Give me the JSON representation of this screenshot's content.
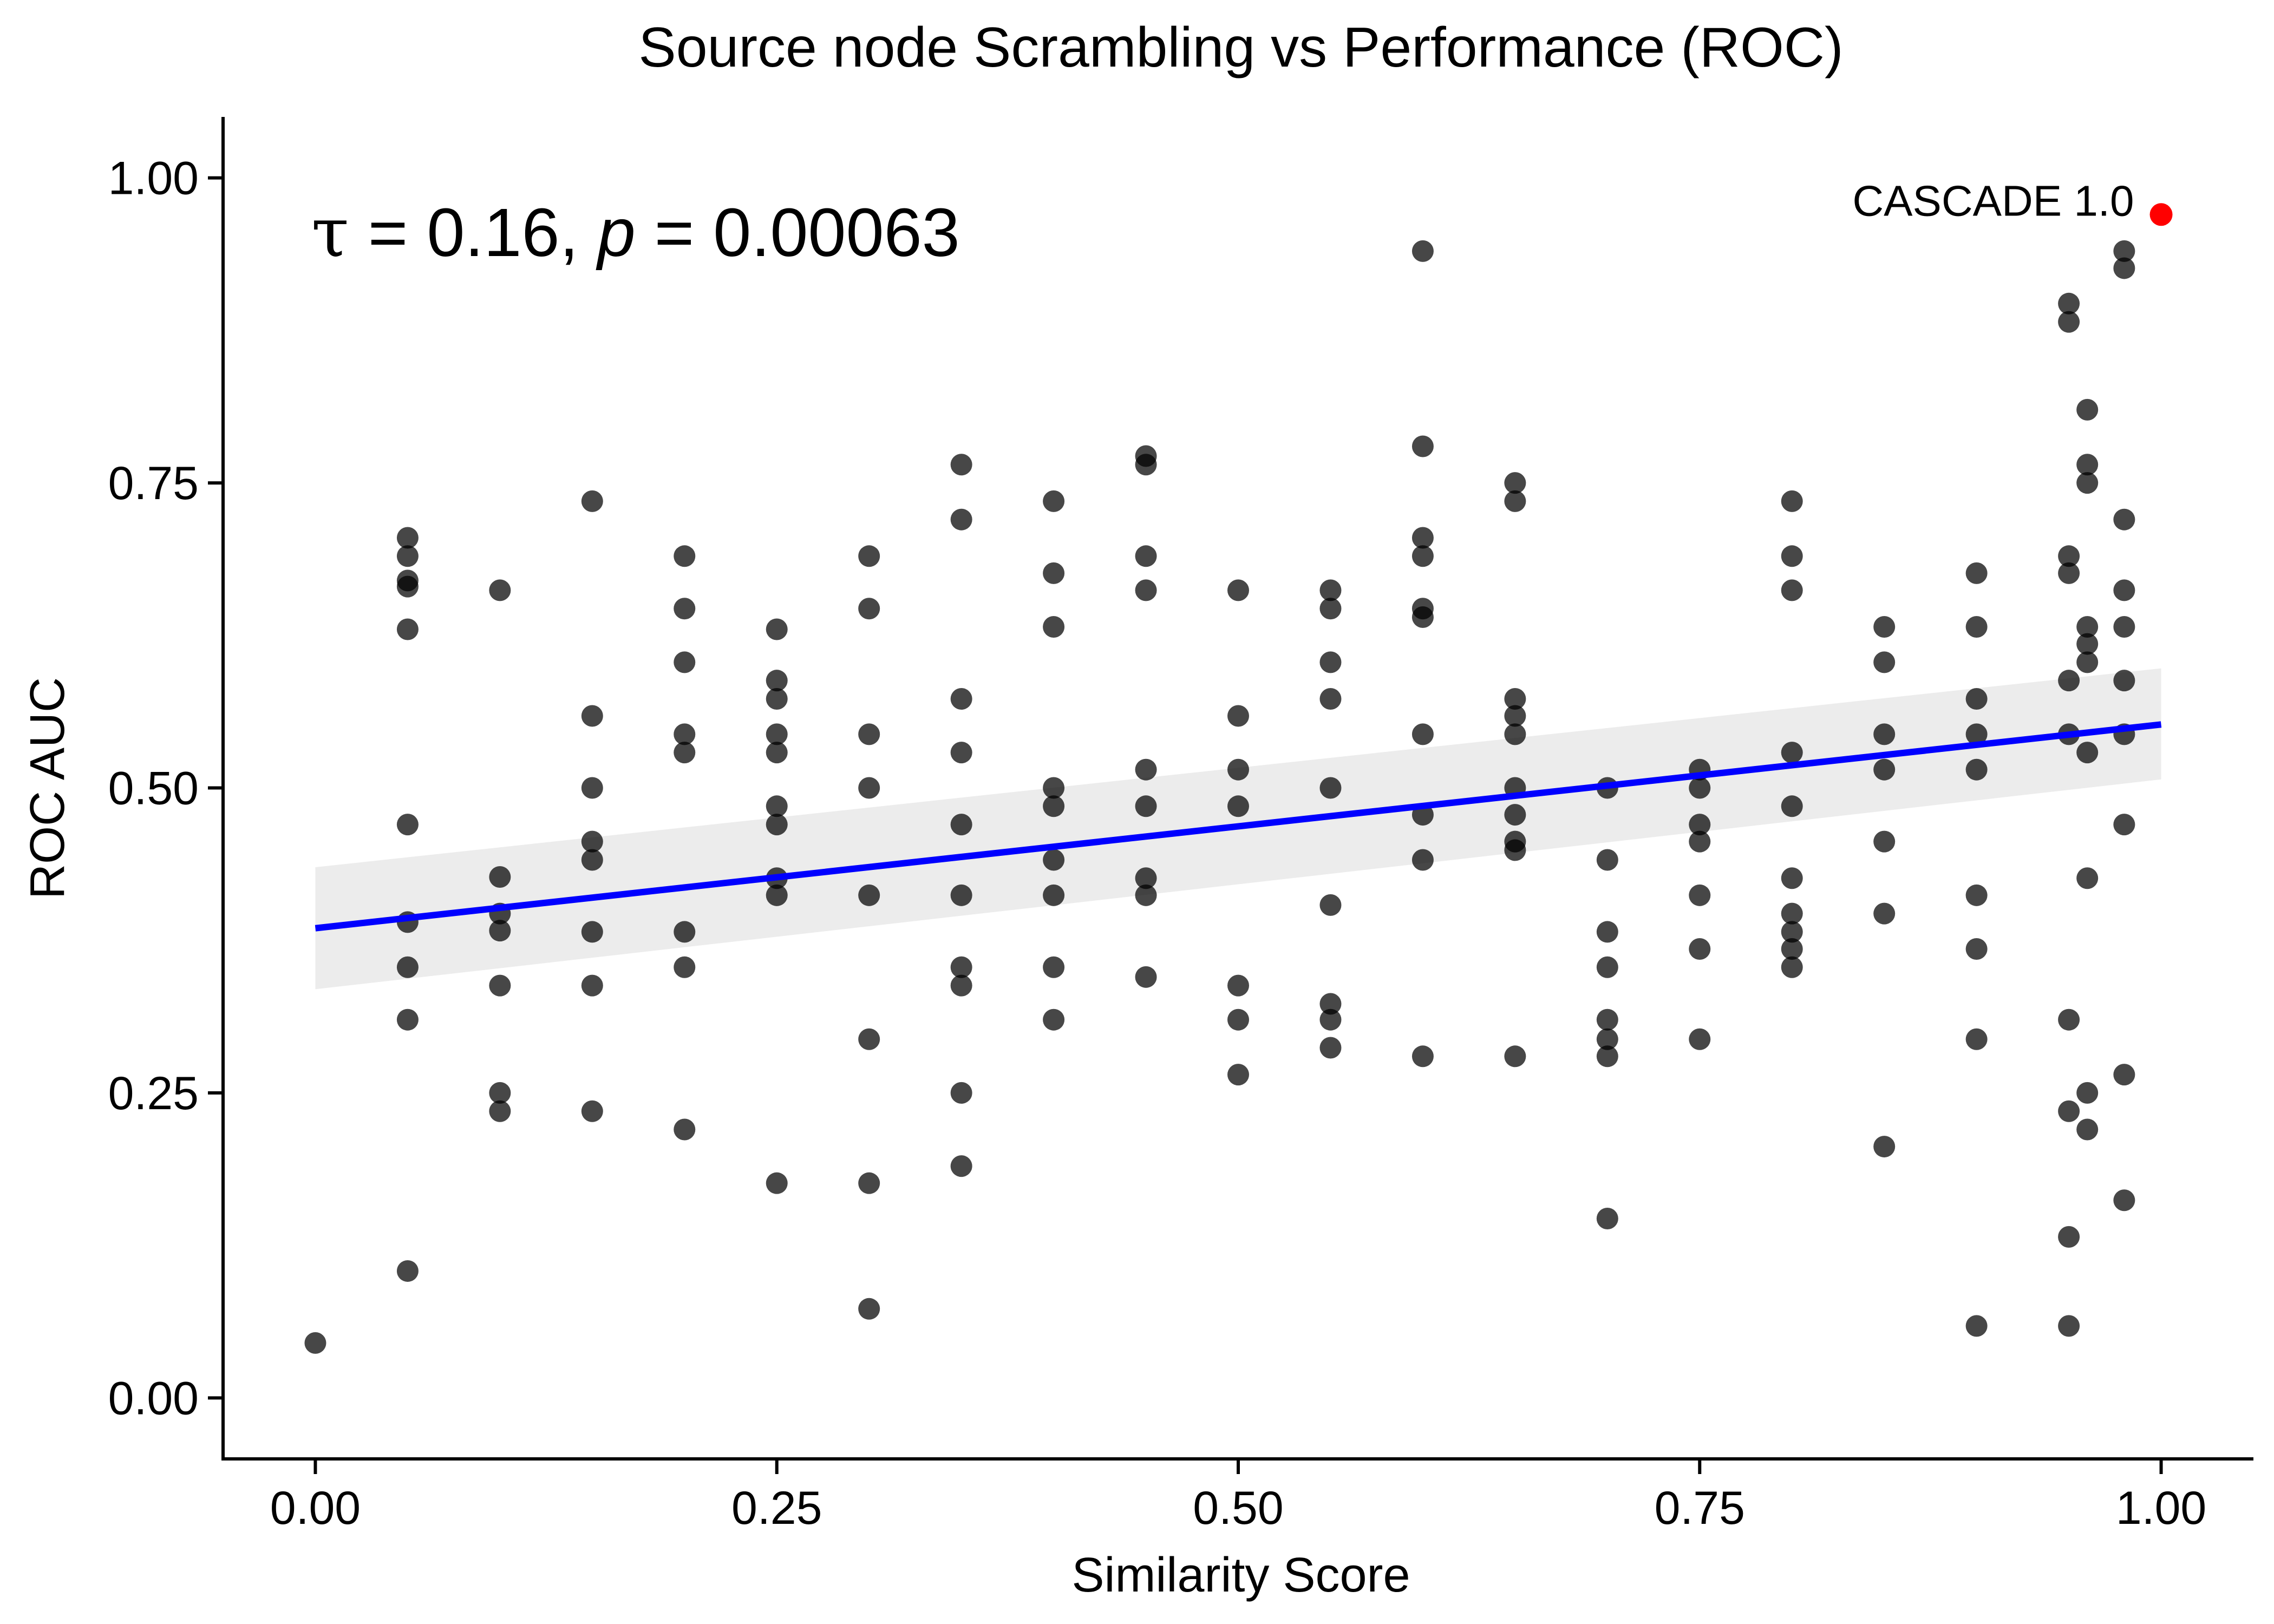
{
  "chart_data": {
    "type": "scatter",
    "title": "Source node Scrambling vs Performance (ROC)",
    "xlabel": "Similarity Score",
    "ylabel": "ROC AUC",
    "xlim": [
      -0.05,
      1.05
    ],
    "ylim": [
      -0.05,
      1.05
    ],
    "x_ticks": [
      0.0,
      0.25,
      0.5,
      0.75,
      1.0
    ],
    "x_tick_labels": [
      "0.00",
      "0.25",
      "0.50",
      "0.75",
      "1.00"
    ],
    "y_ticks": [
      0.0,
      0.25,
      0.5,
      0.75,
      1.0
    ],
    "y_tick_labels": [
      "0.00",
      "0.25",
      "0.50",
      "0.75",
      "1.00"
    ],
    "grid": false,
    "annotation": {
      "tau_symbol": "τ",
      "tau_value": "= 0.16,",
      "p_symbol": "p",
      "p_value": "= 0.00063"
    },
    "highlight_point": {
      "label": "CASCADE 1.0",
      "x": 1.0,
      "y": 0.97,
      "color": "#ff0000"
    },
    "point_color": "#000000",
    "regression": {
      "color": "#0000ff",
      "band_color": "#ebebeb",
      "x": [
        0.0,
        1.0
      ],
      "y": [
        0.385,
        0.552
      ],
      "lower": [
        0.335,
        0.507
      ],
      "upper": [
        0.435,
        0.598
      ]
    },
    "points": [
      [
        0.0,
        0.045
      ],
      [
        0.05,
        0.705
      ],
      [
        0.05,
        0.69
      ],
      [
        0.05,
        0.67
      ],
      [
        0.05,
        0.665
      ],
      [
        0.05,
        0.63
      ],
      [
        0.05,
        0.47
      ],
      [
        0.05,
        0.39
      ],
      [
        0.05,
        0.353
      ],
      [
        0.05,
        0.31
      ],
      [
        0.05,
        0.104
      ],
      [
        0.1,
        0.662
      ],
      [
        0.1,
        0.427
      ],
      [
        0.1,
        0.397
      ],
      [
        0.1,
        0.383
      ],
      [
        0.1,
        0.338
      ],
      [
        0.1,
        0.25
      ],
      [
        0.1,
        0.235
      ],
      [
        0.15,
        0.735
      ],
      [
        0.15,
        0.559
      ],
      [
        0.15,
        0.5
      ],
      [
        0.15,
        0.456
      ],
      [
        0.15,
        0.441
      ],
      [
        0.15,
        0.382
      ],
      [
        0.15,
        0.338
      ],
      [
        0.15,
        0.235
      ],
      [
        0.2,
        0.69
      ],
      [
        0.2,
        0.647
      ],
      [
        0.2,
        0.603
      ],
      [
        0.2,
        0.544
      ],
      [
        0.2,
        0.529
      ],
      [
        0.2,
        0.382
      ],
      [
        0.2,
        0.353
      ],
      [
        0.2,
        0.22
      ],
      [
        0.25,
        0.63
      ],
      [
        0.25,
        0.588
      ],
      [
        0.25,
        0.573
      ],
      [
        0.25,
        0.544
      ],
      [
        0.25,
        0.529
      ],
      [
        0.25,
        0.485
      ],
      [
        0.25,
        0.47
      ],
      [
        0.25,
        0.426
      ],
      [
        0.25,
        0.412
      ],
      [
        0.25,
        0.176
      ],
      [
        0.3,
        0.69
      ],
      [
        0.3,
        0.647
      ],
      [
        0.3,
        0.544
      ],
      [
        0.3,
        0.5
      ],
      [
        0.3,
        0.412
      ],
      [
        0.3,
        0.294
      ],
      [
        0.3,
        0.176
      ],
      [
        0.3,
        0.073
      ],
      [
        0.35,
        0.765
      ],
      [
        0.35,
        0.72
      ],
      [
        0.35,
        0.573
      ],
      [
        0.35,
        0.529
      ],
      [
        0.35,
        0.47
      ],
      [
        0.35,
        0.412
      ],
      [
        0.35,
        0.353
      ],
      [
        0.35,
        0.338
      ],
      [
        0.35,
        0.25
      ],
      [
        0.35,
        0.19
      ],
      [
        0.4,
        0.735
      ],
      [
        0.4,
        0.676
      ],
      [
        0.4,
        0.632
      ],
      [
        0.4,
        0.5
      ],
      [
        0.4,
        0.485
      ],
      [
        0.4,
        0.441
      ],
      [
        0.4,
        0.412
      ],
      [
        0.4,
        0.353
      ],
      [
        0.4,
        0.31
      ],
      [
        0.45,
        0.772
      ],
      [
        0.45,
        0.765
      ],
      [
        0.45,
        0.69
      ],
      [
        0.45,
        0.662
      ],
      [
        0.45,
        0.515
      ],
      [
        0.45,
        0.485
      ],
      [
        0.45,
        0.426
      ],
      [
        0.45,
        0.412
      ],
      [
        0.45,
        0.345
      ],
      [
        0.5,
        0.662
      ],
      [
        0.5,
        0.559
      ],
      [
        0.5,
        0.515
      ],
      [
        0.5,
        0.485
      ],
      [
        0.5,
        0.338
      ],
      [
        0.5,
        0.31
      ],
      [
        0.5,
        0.265
      ],
      [
        0.55,
        0.662
      ],
      [
        0.55,
        0.647
      ],
      [
        0.55,
        0.603
      ],
      [
        0.55,
        0.573
      ],
      [
        0.55,
        0.5
      ],
      [
        0.55,
        0.404
      ],
      [
        0.55,
        0.323
      ],
      [
        0.55,
        0.31
      ],
      [
        0.55,
        0.287
      ],
      [
        0.6,
        0.94
      ],
      [
        0.6,
        0.78
      ],
      [
        0.6,
        0.705
      ],
      [
        0.6,
        0.69
      ],
      [
        0.6,
        0.647
      ],
      [
        0.6,
        0.64
      ],
      [
        0.6,
        0.544
      ],
      [
        0.6,
        0.478
      ],
      [
        0.6,
        0.441
      ],
      [
        0.6,
        0.28
      ],
      [
        0.65,
        0.75
      ],
      [
        0.65,
        0.735
      ],
      [
        0.65,
        0.573
      ],
      [
        0.65,
        0.559
      ],
      [
        0.65,
        0.544
      ],
      [
        0.65,
        0.5
      ],
      [
        0.65,
        0.478
      ],
      [
        0.65,
        0.456
      ],
      [
        0.65,
        0.449
      ],
      [
        0.65,
        0.28
      ],
      [
        0.7,
        0.5
      ],
      [
        0.7,
        0.441
      ],
      [
        0.7,
        0.382
      ],
      [
        0.7,
        0.353
      ],
      [
        0.7,
        0.31
      ],
      [
        0.7,
        0.294
      ],
      [
        0.7,
        0.28
      ],
      [
        0.7,
        0.147
      ],
      [
        0.75,
        0.515
      ],
      [
        0.75,
        0.5
      ],
      [
        0.75,
        0.47
      ],
      [
        0.75,
        0.456
      ],
      [
        0.75,
        0.412
      ],
      [
        0.75,
        0.368
      ],
      [
        0.75,
        0.294
      ],
      [
        0.8,
        0.735
      ],
      [
        0.8,
        0.69
      ],
      [
        0.8,
        0.662
      ],
      [
        0.8,
        0.529
      ],
      [
        0.8,
        0.485
      ],
      [
        0.8,
        0.426
      ],
      [
        0.8,
        0.397
      ],
      [
        0.8,
        0.382
      ],
      [
        0.8,
        0.368
      ],
      [
        0.8,
        0.353
      ],
      [
        0.85,
        0.632
      ],
      [
        0.85,
        0.603
      ],
      [
        0.85,
        0.544
      ],
      [
        0.85,
        0.515
      ],
      [
        0.85,
        0.456
      ],
      [
        0.85,
        0.397
      ],
      [
        0.85,
        0.206
      ],
      [
        0.9,
        0.676
      ],
      [
        0.9,
        0.632
      ],
      [
        0.9,
        0.573
      ],
      [
        0.9,
        0.544
      ],
      [
        0.9,
        0.515
      ],
      [
        0.9,
        0.412
      ],
      [
        0.9,
        0.368
      ],
      [
        0.9,
        0.294
      ],
      [
        0.9,
        0.059
      ],
      [
        0.95,
        0.897
      ],
      [
        0.95,
        0.882
      ],
      [
        0.95,
        0.69
      ],
      [
        0.95,
        0.676
      ],
      [
        0.95,
        0.588
      ],
      [
        0.95,
        0.544
      ],
      [
        0.95,
        0.31
      ],
      [
        0.95,
        0.235
      ],
      [
        0.95,
        0.132
      ],
      [
        0.95,
        0.059
      ],
      [
        0.96,
        0.81
      ],
      [
        0.96,
        0.765
      ],
      [
        0.96,
        0.75
      ],
      [
        0.96,
        0.632
      ],
      [
        0.96,
        0.618
      ],
      [
        0.96,
        0.603
      ],
      [
        0.96,
        0.529
      ],
      [
        0.96,
        0.426
      ],
      [
        0.96,
        0.25
      ],
      [
        0.96,
        0.22
      ],
      [
        0.98,
        0.94
      ],
      [
        0.98,
        0.926
      ],
      [
        0.98,
        0.72
      ],
      [
        0.98,
        0.662
      ],
      [
        0.98,
        0.632
      ],
      [
        0.98,
        0.588
      ],
      [
        0.98,
        0.544
      ],
      [
        0.98,
        0.47
      ],
      [
        0.98,
        0.265
      ],
      [
        0.98,
        0.162
      ]
    ]
  }
}
